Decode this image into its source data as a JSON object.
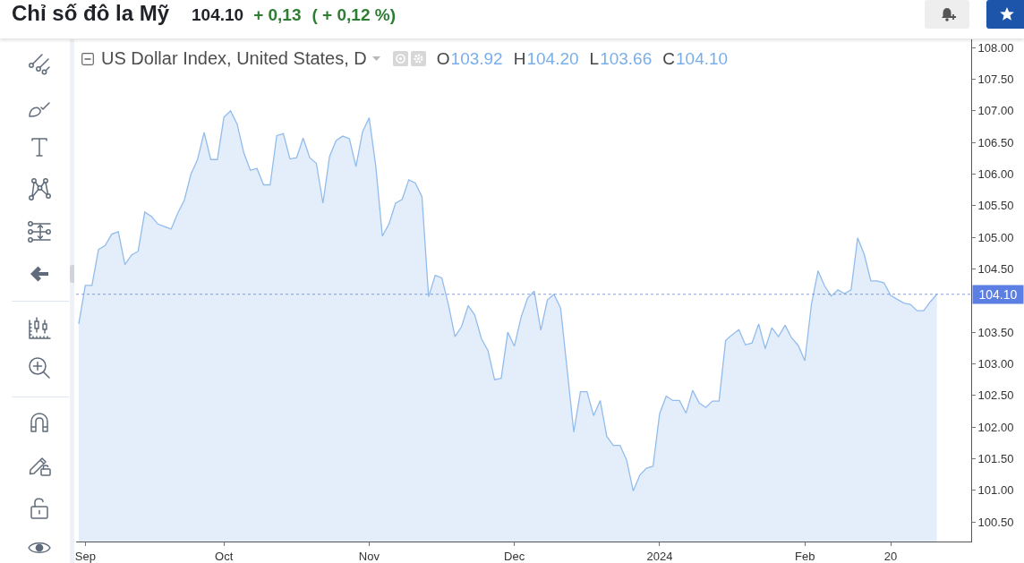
{
  "chart_data": {
    "type": "area",
    "title": "Chỉ số đô la Mỹ",
    "subtitle": "US Dollar Index, United States, D",
    "annotations": [
      "104.10",
      "+ 0,13",
      "( + 0,12 %)",
      "O",
      "103.92",
      "H",
      "104.20",
      "L",
      "103.66",
      "C",
      "104.10"
    ],
    "categories": [
      null,
      "Sep",
      null,
      null,
      null,
      null,
      null,
      null,
      null,
      null,
      null,
      null,
      null,
      null,
      null,
      null,
      null,
      null,
      null,
      null,
      null,
      null,
      "Oct",
      null,
      null,
      null,
      null,
      null,
      null,
      null,
      null,
      null,
      null,
      null,
      null,
      null,
      null,
      null,
      null,
      null,
      null,
      null,
      null,
      null,
      "Nov",
      null,
      null,
      null,
      null,
      null,
      null,
      null,
      null,
      null,
      null,
      null,
      null,
      null,
      null,
      null,
      null,
      null,
      null,
      null,
      null,
      null,
      "Dec",
      null,
      null,
      null,
      null,
      null,
      null,
      null,
      null,
      null,
      null,
      null,
      null,
      null,
      null,
      null,
      null,
      null,
      null,
      null,
      null,
      null,
      "2024",
      null,
      null,
      null,
      null,
      null,
      null,
      null,
      null,
      null,
      null,
      null,
      null,
      null,
      null,
      null,
      null,
      null,
      null,
      null,
      null,
      null,
      "Feb",
      null,
      null,
      null,
      null,
      null,
      null,
      null,
      null,
      null,
      null,
      null,
      null,
      "20",
      null,
      null,
      null,
      null,
      null,
      null,
      null
    ],
    "series": [
      {
        "color": "#92bcec",
        "values": [
          103.63,
          104.24,
          104.24,
          104.81,
          104.87,
          105.05,
          105.09,
          104.57,
          104.72,
          104.78,
          105.4,
          105.33,
          105.21,
          105.17,
          105.13,
          105.38,
          105.59,
          106.0,
          106.23,
          106.66,
          106.23,
          106.23,
          106.9,
          107.0,
          106.79,
          106.34,
          106.06,
          106.09,
          105.83,
          105.83,
          106.61,
          106.64,
          106.24,
          106.26,
          106.57,
          106.26,
          106.17,
          105.54,
          106.28,
          106.53,
          106.6,
          106.56,
          106.12,
          106.67,
          106.89,
          106.13,
          105.02,
          105.21,
          105.54,
          105.6,
          105.91,
          105.86,
          105.64,
          104.06,
          104.4,
          104.36,
          103.94,
          103.43,
          103.59,
          103.92,
          103.77,
          103.4,
          103.21,
          102.75,
          102.77,
          103.5,
          103.28,
          103.73,
          104.04,
          104.15,
          103.53,
          104.01,
          104.1,
          103.88,
          102.9,
          101.92,
          102.56,
          102.56,
          102.18,
          102.42,
          101.85,
          101.71,
          101.71,
          101.48,
          100.99,
          101.24,
          101.35,
          101.38,
          102.21,
          102.49,
          102.42,
          102.42,
          102.22,
          102.58,
          102.38,
          102.31,
          102.41,
          102.41,
          103.37,
          103.46,
          103.54,
          103.3,
          103.33,
          103.63,
          103.24,
          103.57,
          103.43,
          103.61,
          103.41,
          103.29,
          103.05,
          103.94,
          104.47,
          104.23,
          104.07,
          104.17,
          104.11,
          104.17,
          104.99,
          104.73,
          104.31,
          104.31,
          104.28,
          104.08,
          104.02,
          103.96,
          103.94,
          103.84,
          103.84,
          103.98,
          104.1
        ]
      }
    ],
    "ylim": [
      100.19,
      108.13
    ],
    "yticks": [
      {
        "value": 100.5,
        "label": "100.50"
      },
      {
        "value": 101,
        "label": "101.00"
      },
      {
        "value": 101.5,
        "label": "101.50"
      },
      {
        "value": 102,
        "label": "102.00"
      },
      {
        "value": 102.5,
        "label": "102.50"
      },
      {
        "value": 103,
        "label": "103.00"
      },
      {
        "value": 103.5,
        "label": "103.50"
      },
      {
        "value": 104.5,
        "label": "104.50"
      },
      {
        "value": 105,
        "label": "105.00"
      },
      {
        "value": 105.5,
        "label": "105.50"
      },
      {
        "value": 106,
        "label": "106.00"
      },
      {
        "value": 106.5,
        "label": "106.50"
      },
      {
        "value": 107,
        "label": "107.00"
      },
      {
        "value": 107.5,
        "label": "107.50"
      },
      {
        "value": 108,
        "label": "108.00"
      }
    ],
    "ref_lines": [
      {
        "axis": "y",
        "value": 104.1,
        "label": "104.10",
        "color": "#5b7fe3",
        "line_style": "dotted"
      }
    ]
  }
}
